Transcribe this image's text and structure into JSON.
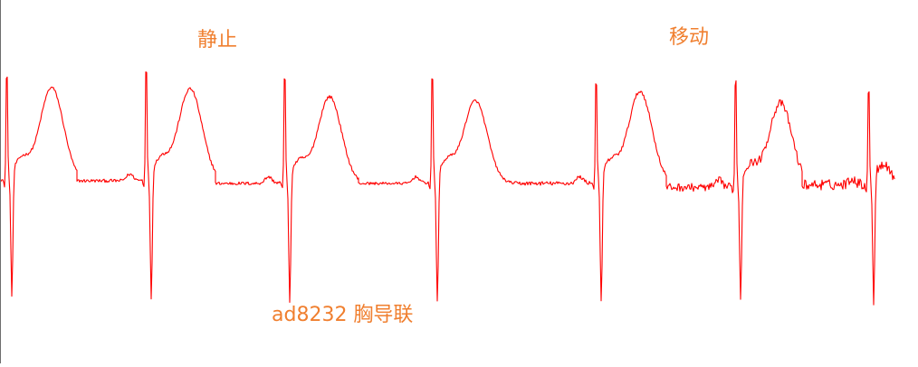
{
  "chart_data": {
    "type": "line",
    "title": "",
    "xlabel": "",
    "ylabel": "",
    "grid": false,
    "legend": "none",
    "annotations": {
      "rest": "静止",
      "motion": "移动",
      "lead": "ad8232 胸导联"
    },
    "series": [
      {
        "color": "#ff0000",
        "beats": [
          {
            "r_time": 7.5,
            "r_peak": 0.93,
            "s_min": -0.95,
            "t_peak": 0.71,
            "t_time": 57,
            "baseline": 0.0,
            "noise": 0.01,
            "partial": true
          },
          {
            "r_time": 161.5,
            "r_peak": 0.99,
            "s_min": -0.97,
            "t_peak": 0.7,
            "t_time": 210,
            "baseline": 0.0,
            "noise": 0.012
          },
          {
            "r_time": 314.5,
            "r_peak": 0.94,
            "s_min": -0.98,
            "t_peak": 0.66,
            "t_time": 364,
            "baseline": -0.02,
            "noise": 0.012
          },
          {
            "r_time": 477.5,
            "r_peak": 0.94,
            "s_min": -0.98,
            "t_peak": 0.63,
            "t_time": 525,
            "baseline": -0.02,
            "noise": 0.01
          },
          {
            "r_time": 658.5,
            "r_peak": 0.9,
            "s_min": -0.98,
            "t_peak": 0.7,
            "t_time": 707,
            "baseline": -0.02,
            "noise": 0.015
          },
          {
            "r_time": 812.5,
            "r_peak": 0.94,
            "s_min": -0.92,
            "t_peak": 0.64,
            "t_time": 862,
            "baseline": -0.05,
            "noise": 0.03
          },
          {
            "r_time": 959.5,
            "r_peak": 0.79,
            "s_min": -0.97,
            "t_peak": 0.0,
            "t_time": 1000,
            "baseline": -0.03,
            "noise": 0.04,
            "truncated_at": 988
          }
        ]
      }
    ],
    "xlim": [
      0,
      1014
    ],
    "ylim": [
      -1.1,
      1.1
    ]
  }
}
